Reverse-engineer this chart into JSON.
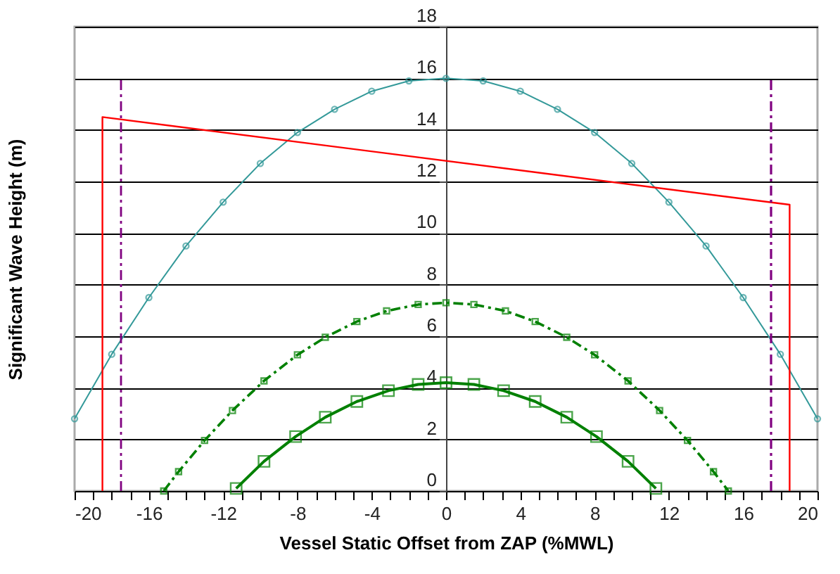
{
  "chart_data": {
    "type": "line",
    "xlabel": "Vessel Static Offset from ZAP (%MWL)",
    "ylabel": "Significant Wave Height (m)",
    "xlim": [
      -20,
      20
    ],
    "ylim": [
      0,
      18
    ],
    "xticks": [
      -20,
      {
        "value": -19,
        "label": null
      },
      {
        "value": -18,
        "label": null
      },
      {
        "value": -17,
        "label": null
      },
      -16,
      {
        "value": -15,
        "label": null
      },
      {
        "value": -14,
        "label": null
      },
      {
        "value": -13,
        "label": null
      },
      -12,
      {
        "value": -11,
        "label": null
      },
      {
        "value": -10,
        "label": null
      },
      {
        "value": -9,
        "label": null
      },
      -8,
      {
        "value": -7,
        "label": null
      },
      {
        "value": -6,
        "label": null
      },
      {
        "value": -5,
        "label": null
      },
      -4,
      {
        "value": -3,
        "label": null
      },
      {
        "value": -2,
        "label": null
      },
      {
        "value": -1,
        "label": null
      },
      0,
      {
        "value": 1,
        "label": null
      },
      {
        "value": 2,
        "label": null
      },
      {
        "value": 3,
        "label": null
      },
      4,
      {
        "value": 5,
        "label": null
      },
      {
        "value": 6,
        "label": null
      },
      {
        "value": 7,
        "label": null
      },
      8,
      {
        "value": 9,
        "label": null
      },
      {
        "value": 10,
        "label": null
      },
      {
        "value": 11,
        "label": null
      },
      12,
      {
        "value": 13,
        "label": null
      },
      {
        "value": 14,
        "label": null
      },
      {
        "value": 15,
        "label": null
      },
      16,
      {
        "value": 17,
        "label": null
      },
      {
        "value": 18,
        "label": null
      },
      {
        "value": 19,
        "label": null
      },
      20
    ],
    "yticks": [
      0,
      2,
      4,
      6,
      8,
      10,
      12,
      14,
      16,
      18
    ],
    "grid": "y",
    "legend": false,
    "series": [
      {
        "color": "#339999",
        "marker": "circle",
        "line_style": "solid",
        "x": [
          -20,
          -18,
          -16,
          -14,
          -12,
          -10,
          -8,
          -6,
          -4,
          -2,
          0,
          2,
          4,
          6,
          8,
          10,
          12,
          14,
          16,
          18,
          20
        ],
        "values": [
          2.8,
          5.3,
          7.5,
          9.5,
          11.2,
          12.7,
          13.9,
          14.8,
          15.5,
          15.9,
          16,
          15.9,
          15.5,
          14.8,
          13.9,
          12.7,
          11.2,
          9.5,
          7.5,
          5.3,
          2.8
        ]
      },
      {
        "color": "#ff0000",
        "marker": "none",
        "line_style": "solid",
        "x": [
          -18.5,
          -18.5,
          18.5,
          18.5
        ],
        "values": [
          0,
          14.5,
          11.1,
          0
        ]
      },
      {
        "color": "#800080",
        "marker": "none",
        "line_style": "dashed",
        "x": [
          -17.5,
          -17.5
        ],
        "values": [
          0,
          16
        ]
      },
      {
        "color": "#800080",
        "marker": "none",
        "line_style": "dashed",
        "x": [
          17.5,
          17.5
        ],
        "values": [
          0,
          16
        ]
      },
      {
        "color": "#008000",
        "marker": "square",
        "line_style": "dashed",
        "x": [
          -15.2,
          -14.4,
          -13,
          -11.5,
          -9.8,
          -8,
          -6.5,
          -4.8,
          -3.2,
          -1.5,
          0,
          1.5,
          3.2,
          4.8,
          6.5,
          8,
          9.8,
          11.5,
          13,
          14.4,
          15.2
        ],
        "values": [
          0,
          0.75,
          1.96,
          3.12,
          4.27,
          5.28,
          5.96,
          6.57,
          6.98,
          7.23,
          7.3,
          7.23,
          6.98,
          6.57,
          5.96,
          5.28,
          4.27,
          3.12,
          1.96,
          0.75,
          0
        ]
      },
      {
        "color": "#008000",
        "marker": "square",
        "line_style": "solid",
        "x": [
          -11.3,
          -9.8,
          -8.1,
          -6.5,
          -4.8,
          -3.1,
          -1.5,
          0,
          1.5,
          3.1,
          4.8,
          6.5,
          8.1,
          9.8,
          11.3
        ],
        "values": [
          0.1,
          1.15,
          2.11,
          2.86,
          3.47,
          3.89,
          4.13,
          4.2,
          4.13,
          3.89,
          3.47,
          2.86,
          2.11,
          1.15,
          0.1
        ]
      }
    ]
  }
}
